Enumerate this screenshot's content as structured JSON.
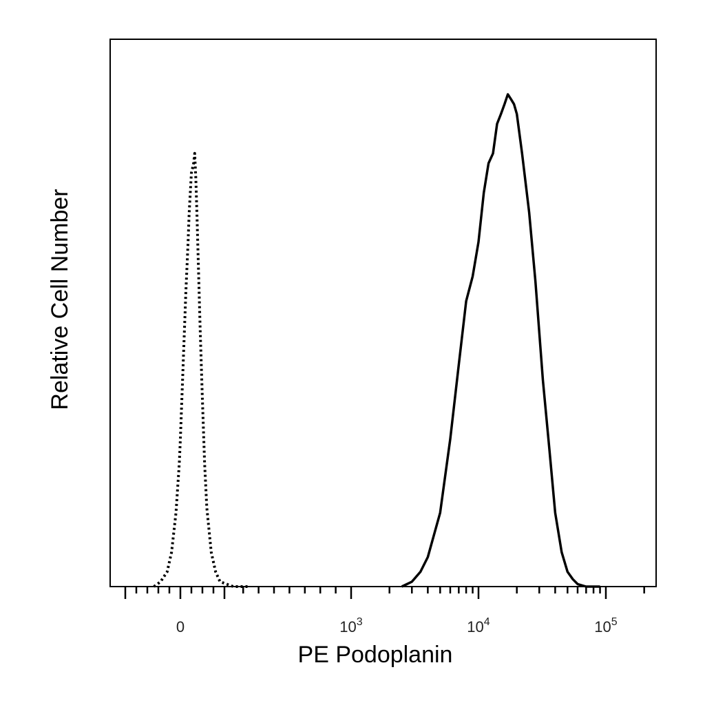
{
  "chart_data": {
    "type": "line",
    "title": "",
    "xlabel": "PE  Podoplanin",
    "ylabel": "Relative Cell Number",
    "x_scale": "biexponential",
    "x_tick_labels": [
      {
        "value": 0,
        "base": "0",
        "exp": ""
      },
      {
        "value": 1000,
        "base": "10",
        "exp": "3"
      },
      {
        "value": 10000,
        "base": "10",
        "exp": "4"
      },
      {
        "value": 100000,
        "base": "10",
        "exp": "5"
      }
    ],
    "xlim": [
      -300,
      250000
    ],
    "ylim": [
      0,
      100
    ],
    "grid": false,
    "legend": "none",
    "series": [
      {
        "style": "dotted",
        "color": "#000000",
        "x": [
          -120,
          -90,
          -60,
          -40,
          -20,
          -5,
          0,
          5,
          15,
          25,
          35,
          40,
          45,
          50,
          55,
          60,
          65,
          70,
          75,
          80,
          90,
          100,
          110,
          120,
          140,
          160,
          180,
          210,
          240,
          280,
          330
        ],
        "y": [
          0,
          1,
          3,
          7,
          15,
          25,
          30,
          36,
          48,
          60,
          70,
          76,
          80,
          84,
          85,
          86,
          88,
          83,
          76,
          68,
          52,
          38,
          25,
          16,
          7,
          3,
          1,
          0.5,
          0,
          0,
          0
        ]
      },
      {
        "style": "solid",
        "color": "#000000",
        "x": [
          2500,
          3000,
          3500,
          4000,
          5000,
          6000,
          7000,
          8000,
          9000,
          10000,
          11000,
          12000,
          13000,
          14000,
          15000,
          16000,
          17000,
          18000,
          19000,
          20000,
          22000,
          25000,
          28000,
          32000,
          36000,
          40000,
          45000,
          50000,
          55000,
          60000,
          70000,
          80000,
          90000
        ],
        "y": [
          0,
          1,
          3,
          6,
          15,
          30,
          45,
          58,
          63,
          70,
          80,
          86,
          88,
          94,
          96,
          98,
          100,
          99,
          98,
          96,
          88,
          76,
          62,
          42,
          28,
          15,
          7,
          3,
          1.5,
          0.5,
          0,
          0,
          0
        ]
      }
    ]
  }
}
